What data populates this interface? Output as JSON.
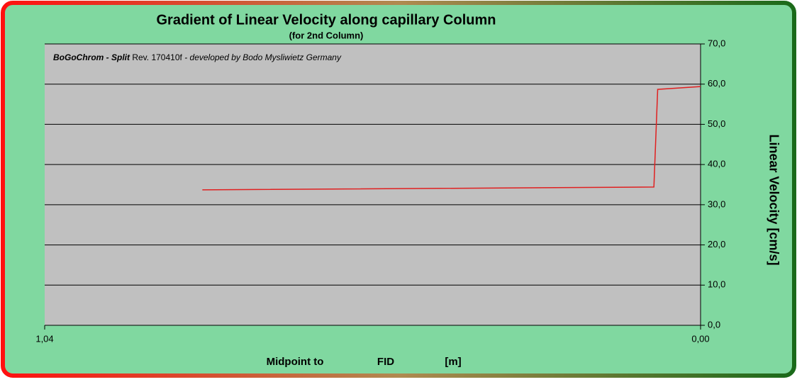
{
  "chart_data": {
    "type": "line",
    "title": "Gradient of Linear Velocity along capillary Column",
    "subtitle": "(for 2nd Column)",
    "annotation": [
      "BoGoChrom - Split",
      "Rev. 170410f",
      "- developed by Bodo Mysliwietz Germany"
    ],
    "x_label": [
      "Midpoint to",
      "FID",
      "[m]"
    ],
    "y_label": "Linear Velocity [cm/s]",
    "xlim": [
      1.04,
      0
    ],
    "xticks": [
      {
        "value": 1.04,
        "label": "1,04"
      },
      {
        "value": 0,
        "label": "0,00"
      }
    ],
    "ylim": [
      0,
      70
    ],
    "yticks": [
      {
        "value": 0,
        "label": "0,0"
      },
      {
        "value": 10,
        "label": "10,0"
      },
      {
        "value": 20,
        "label": "20,0"
      },
      {
        "value": 30,
        "label": "30,0"
      },
      {
        "value": 40,
        "label": "40,0"
      },
      {
        "value": 50,
        "label": "50,0"
      },
      {
        "value": 60,
        "label": "60,0"
      },
      {
        "value": 70,
        "label": "70,0"
      }
    ],
    "grid": true,
    "series": [
      {
        "color": "#e02020",
        "x": [
          0.79,
          0.074,
          0.068,
          0
        ],
        "values": [
          33.7,
          34.4,
          58.7,
          59.4
        ]
      }
    ]
  }
}
